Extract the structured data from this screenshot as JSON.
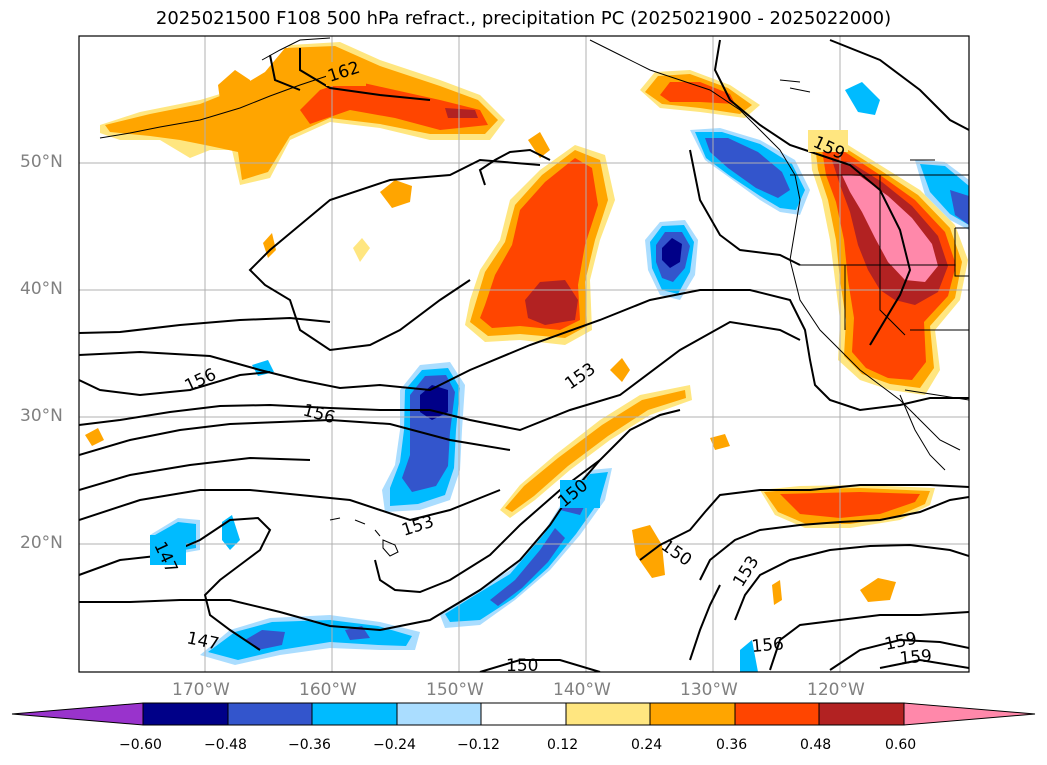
{
  "title": "2025021500 F108 500 hPa refract., precipitation PC (2025021900 - 2025022000)",
  "lat_labels": [
    "50°N",
    "40°N",
    "30°N",
    "20°N"
  ],
  "lon_labels": [
    "170°W",
    "160°W",
    "150°W",
    "140°W",
    "130°W",
    "120°W"
  ],
  "contour_labels": [
    "162",
    "159",
    "156",
    "156",
    "153",
    "153",
    "150",
    "150",
    "150",
    "147",
    "147",
    "153",
    "156",
    "159",
    "159"
  ],
  "colorbar": {
    "ticks": [
      "−0.60",
      "−0.48",
      "−0.36",
      "−0.24",
      "−0.12",
      "0.12",
      "0.24",
      "0.36",
      "0.48",
      "0.60"
    ],
    "colors": [
      "#9933cc",
      "#000088",
      "#3355cc",
      "#00bbff",
      "#aaddff",
      "#ffffff",
      "#ffe680",
      "#ffa500",
      "#ff4500",
      "#b22222",
      "#ff88aa"
    ]
  },
  "colors": {
    "gridline": "#b0b0b0",
    "contour": "#000000",
    "coastline": "#000000",
    "tick_label": "#808080"
  }
}
